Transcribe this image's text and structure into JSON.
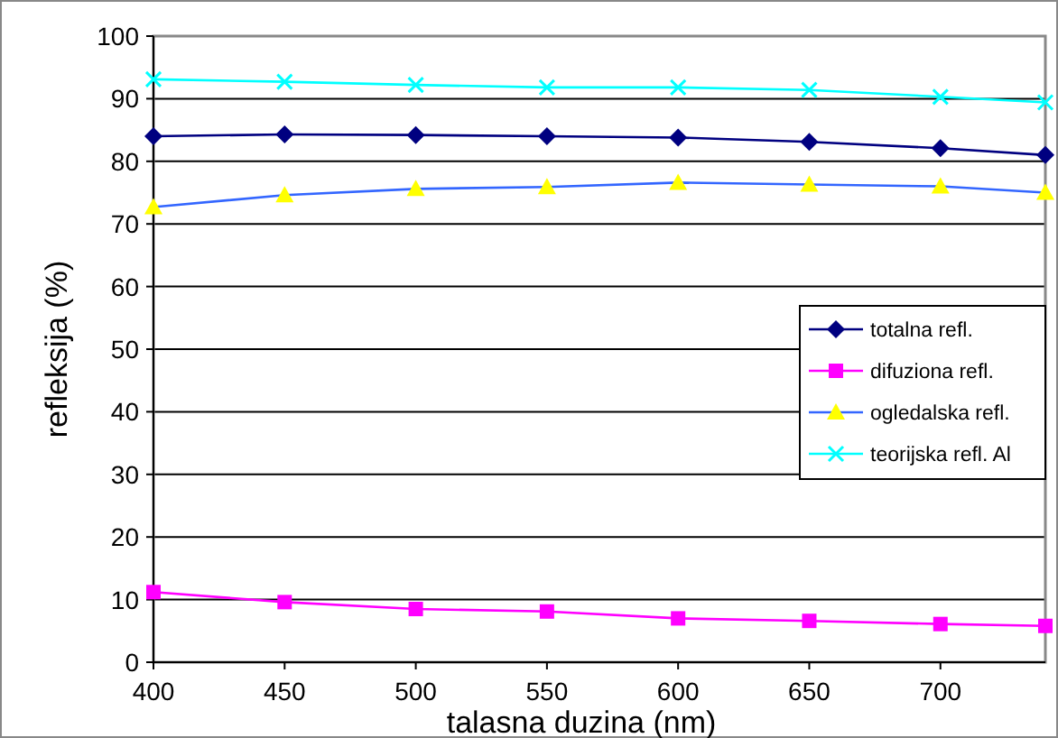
{
  "chart_data": {
    "type": "line",
    "xlabel": "talasna duzina (nm)",
    "ylabel": "refleksija (%)",
    "x": [
      400,
      450,
      500,
      550,
      600,
      650,
      700,
      740
    ],
    "series": [
      {
        "name": "totalna refl.",
        "color": "#000080",
        "marker": "diamond",
        "values": [
          84,
          84.3,
          84.2,
          84,
          83.8,
          83.1,
          82.1,
          81
        ]
      },
      {
        "name": "difuziona refl.",
        "color": "#ff00ff",
        "marker": "square",
        "values": [
          11.2,
          9.6,
          8.5,
          8.1,
          7,
          6.6,
          6.1,
          5.8
        ]
      },
      {
        "name": "ogledalska refl.",
        "color": "#3366ff",
        "colors": [
          "#ffff00",
          "#ffff00",
          "#ffff00",
          "#ffff00",
          "#ffff00",
          "#ffff00",
          "#ffff00",
          "#ffff00"
        ],
        "marker": "triangle",
        "values": [
          72.7,
          74.6,
          75.6,
          75.9,
          76.6,
          76.3,
          76,
          75
        ]
      },
      {
        "name": "teorijska refl. Al",
        "color": "#00ffff",
        "marker": "cross",
        "values": [
          93.1,
          92.7,
          92.2,
          91.8,
          91.8,
          91.4,
          90.3,
          89.4
        ]
      }
    ],
    "xlim": [
      400,
      740
    ],
    "xticks": [
      400,
      450,
      500,
      550,
      600,
      650,
      700
    ],
    "ylim": [
      0,
      100
    ],
    "yticks": [
      0,
      10,
      20,
      30,
      40,
      50,
      60,
      70,
      80,
      90,
      100
    ],
    "grid": "y",
    "legend": "right"
  }
}
